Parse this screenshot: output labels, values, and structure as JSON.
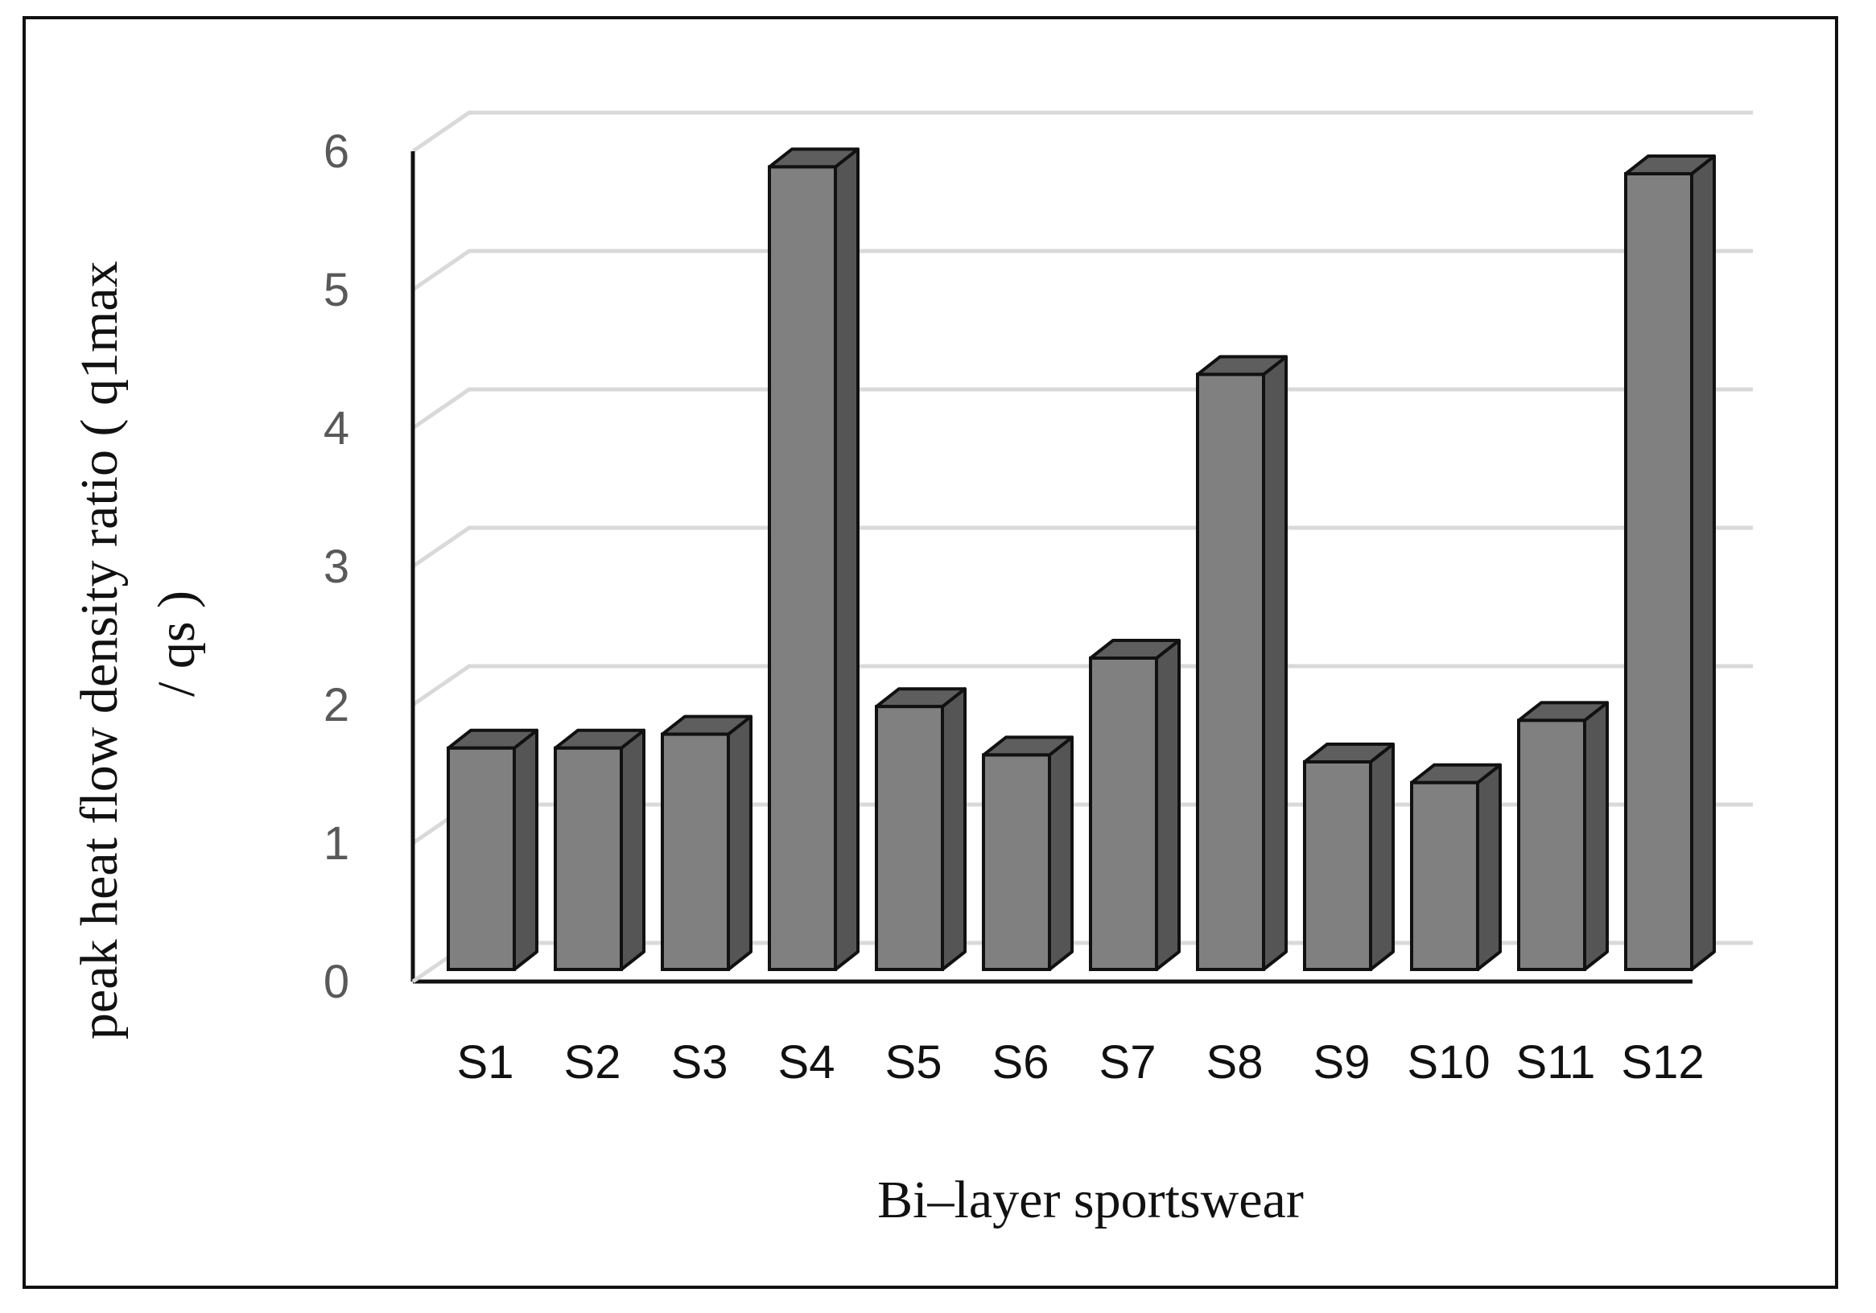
{
  "chart_data": {
    "type": "bar",
    "style": "3d-column",
    "categories": [
      "S1",
      "S2",
      "S3",
      "S4",
      "S5",
      "S6",
      "S7",
      "S8",
      "S9",
      "S10",
      "S11",
      "S12"
    ],
    "values": [
      1.6,
      1.6,
      1.7,
      5.8,
      1.9,
      1.55,
      2.25,
      4.3,
      1.5,
      1.35,
      1.8,
      5.75
    ],
    "title": "",
    "xlabel": "Bi–layer sportswear",
    "ylabel_lines": [
      "peak heat flow density ratio ( q1max",
      "/ qs )"
    ],
    "ylim": [
      0,
      6
    ],
    "yticks": [
      "0",
      "1",
      "2",
      "3",
      "4",
      "5",
      "6"
    ],
    "grid": true,
    "legend": "none",
    "colors": {
      "bar_front": "#808080",
      "bar_side": "#555555",
      "bar_top": "#5e5e5e",
      "bar_outline": "#111111",
      "gridline": "#d9d9d9",
      "axis": "#111111"
    }
  }
}
